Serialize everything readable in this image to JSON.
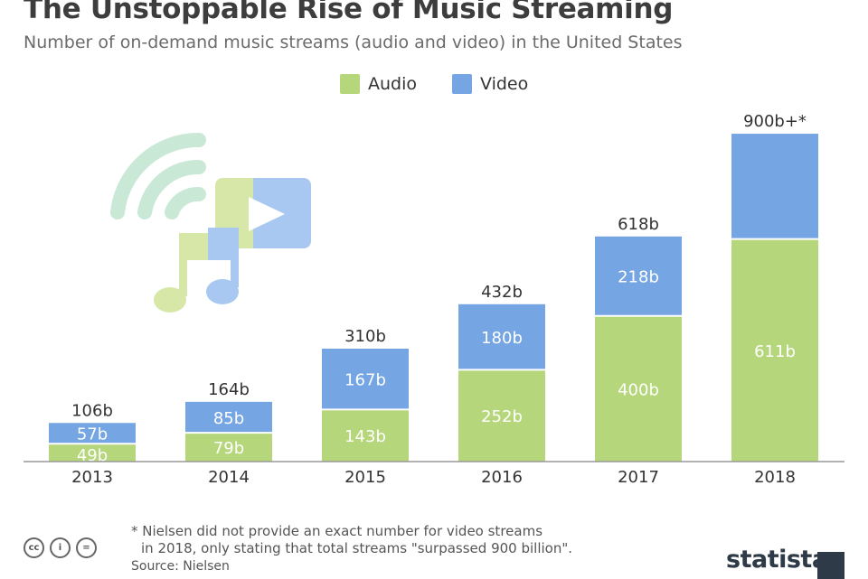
{
  "header": {
    "title": "The Unstoppable Rise of Music Streaming",
    "subtitle": "Number of on-demand music streams (audio and video) in the United States"
  },
  "colors": {
    "audio": "#b5d67a",
    "video": "#75a5e2",
    "axis": "#999999"
  },
  "chart_data": {
    "type": "bar",
    "stacked": true,
    "categories": [
      "2013",
      "2014",
      "2015",
      "2016",
      "2017",
      "2018"
    ],
    "series": [
      {
        "name": "Audio",
        "values": [
          49,
          79,
          143,
          252,
          400,
          611
        ],
        "labels": [
          "49b",
          "79b",
          "143b",
          "252b",
          "400b",
          "611b"
        ]
      },
      {
        "name": "Video",
        "values": [
          57,
          85,
          167,
          180,
          218,
          289
        ],
        "labels": [
          "57b",
          "85b",
          "167b",
          "180b",
          "218b",
          ""
        ]
      }
    ],
    "totals": [
      106,
      164,
      310,
      432,
      618,
      900
    ],
    "total_labels": [
      "106b",
      "164b",
      "310b",
      "432b",
      "618b",
      "900b+*"
    ],
    "ylim": [
      0,
      920
    ],
    "legend_position": "top-center",
    "grid": false
  },
  "footnote": {
    "line1": "* Nielsen did not provide an exact number for video streams",
    "line2": "in 2018, only stating that total streams \"surpassed 900 billion\".",
    "source": "Source: Nielsen"
  },
  "icons": [
    "cc-icon",
    "by-icon",
    "nd-icon",
    "wifi-icon",
    "video-play-icon",
    "music-note-icon"
  ],
  "cc_labels": {
    "cc": "cc",
    "by": "i",
    "nd": "="
  },
  "brand": "statista"
}
